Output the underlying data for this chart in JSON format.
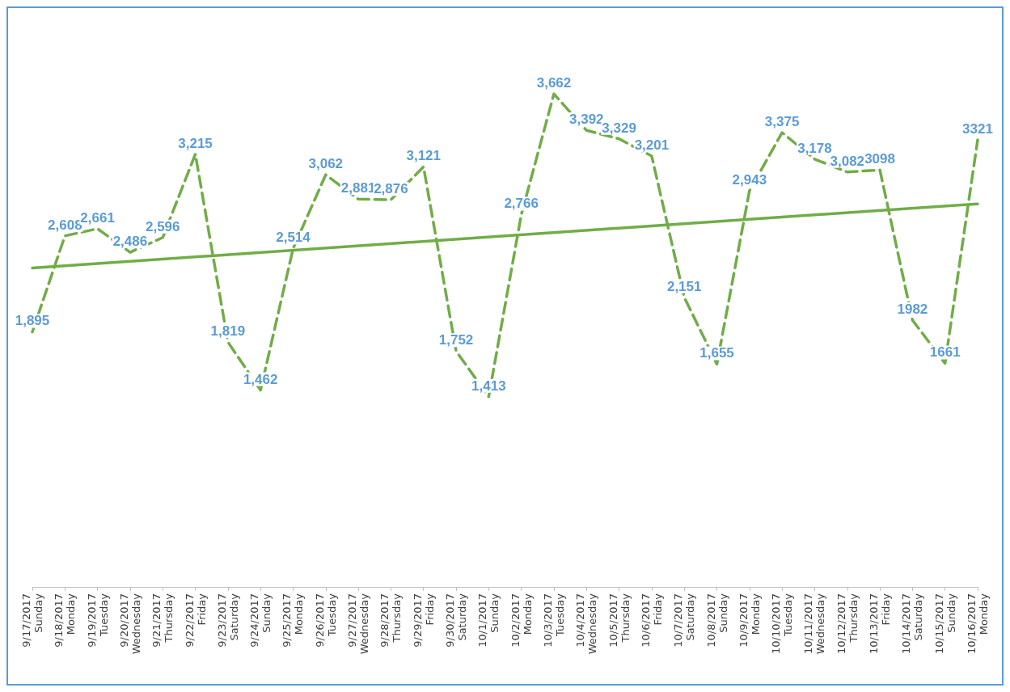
{
  "chart_data": {
    "type": "line",
    "categories": [
      "9/17/2017\nSunday",
      "9/18/2017\nMonday",
      "9/19/2017\nTuesday",
      "9/20/2017\nWednesday",
      "9/21/2017\nThursday",
      "9/22/2017\nFriday",
      "9/23/2017\nSaturday",
      "9/24/2017\nSunday",
      "9/25/2017\nMonday",
      "9/26/2017\nTuesday",
      "9/27/2017\nWednesday",
      "9/28/2017\nThursday",
      "9/29/2017\nFriday",
      "9/30/2017\nSaturday",
      "10/1/2017\nSunday",
      "10/2/2017\nMonday",
      "10/3/2017\nTuesday",
      "10/4/2017\nWednesday",
      "10/5/2017\nThursday",
      "10/6/2017\nFriday",
      "10/7/2017\nSaturday",
      "10/8/2017\nSunday",
      "10/9/2017\nMonday",
      "10/10/2017\nTuesday",
      "10/11/2017\nWednesday",
      "10/12/2017\nThursday",
      "10/13/2017\nFriday",
      "10/14/2017\nSaturday",
      "10/15/2017\nSunday",
      "10/16/2017\nMonday"
    ],
    "series": [
      {
        "color": "#70ad47",
        "line_style": "dashed",
        "values": [
          1895,
          2608,
          2661,
          2486,
          2596,
          3215,
          1819,
          1462,
          2514,
          3062,
          2881,
          2876,
          3121,
          1752,
          1413,
          2766,
          3662,
          3392,
          3329,
          3201,
          2151,
          1655,
          2943,
          3375,
          3178,
          3082,
          3098,
          1982,
          1661,
          3321
        ],
        "value_labels": [
          "1,895",
          "2,608",
          "2,661",
          "2,486",
          "2,596",
          "3,215",
          "1,819",
          "1,462",
          "2,514",
          "3,062",
          "2,881",
          "2,876",
          "3,121",
          "1,752",
          "1,413",
          "2,766",
          "3,662",
          "3,392",
          "3,329",
          "3,201",
          "2,151",
          "1,655",
          "2,943",
          "3,375",
          "3,178",
          "3,082",
          "3098",
          "1982",
          "1661",
          "3321"
        ]
      },
      {
        "type": "line",
        "color": "#70ad47",
        "line_style": "solid",
        "x": [
          "9/17/2017\nSunday",
          "10/16/2017\nMonday"
        ],
        "values": [
          2370,
          2846
        ]
      }
    ],
    "marker": "none",
    "grid": false
  }
}
